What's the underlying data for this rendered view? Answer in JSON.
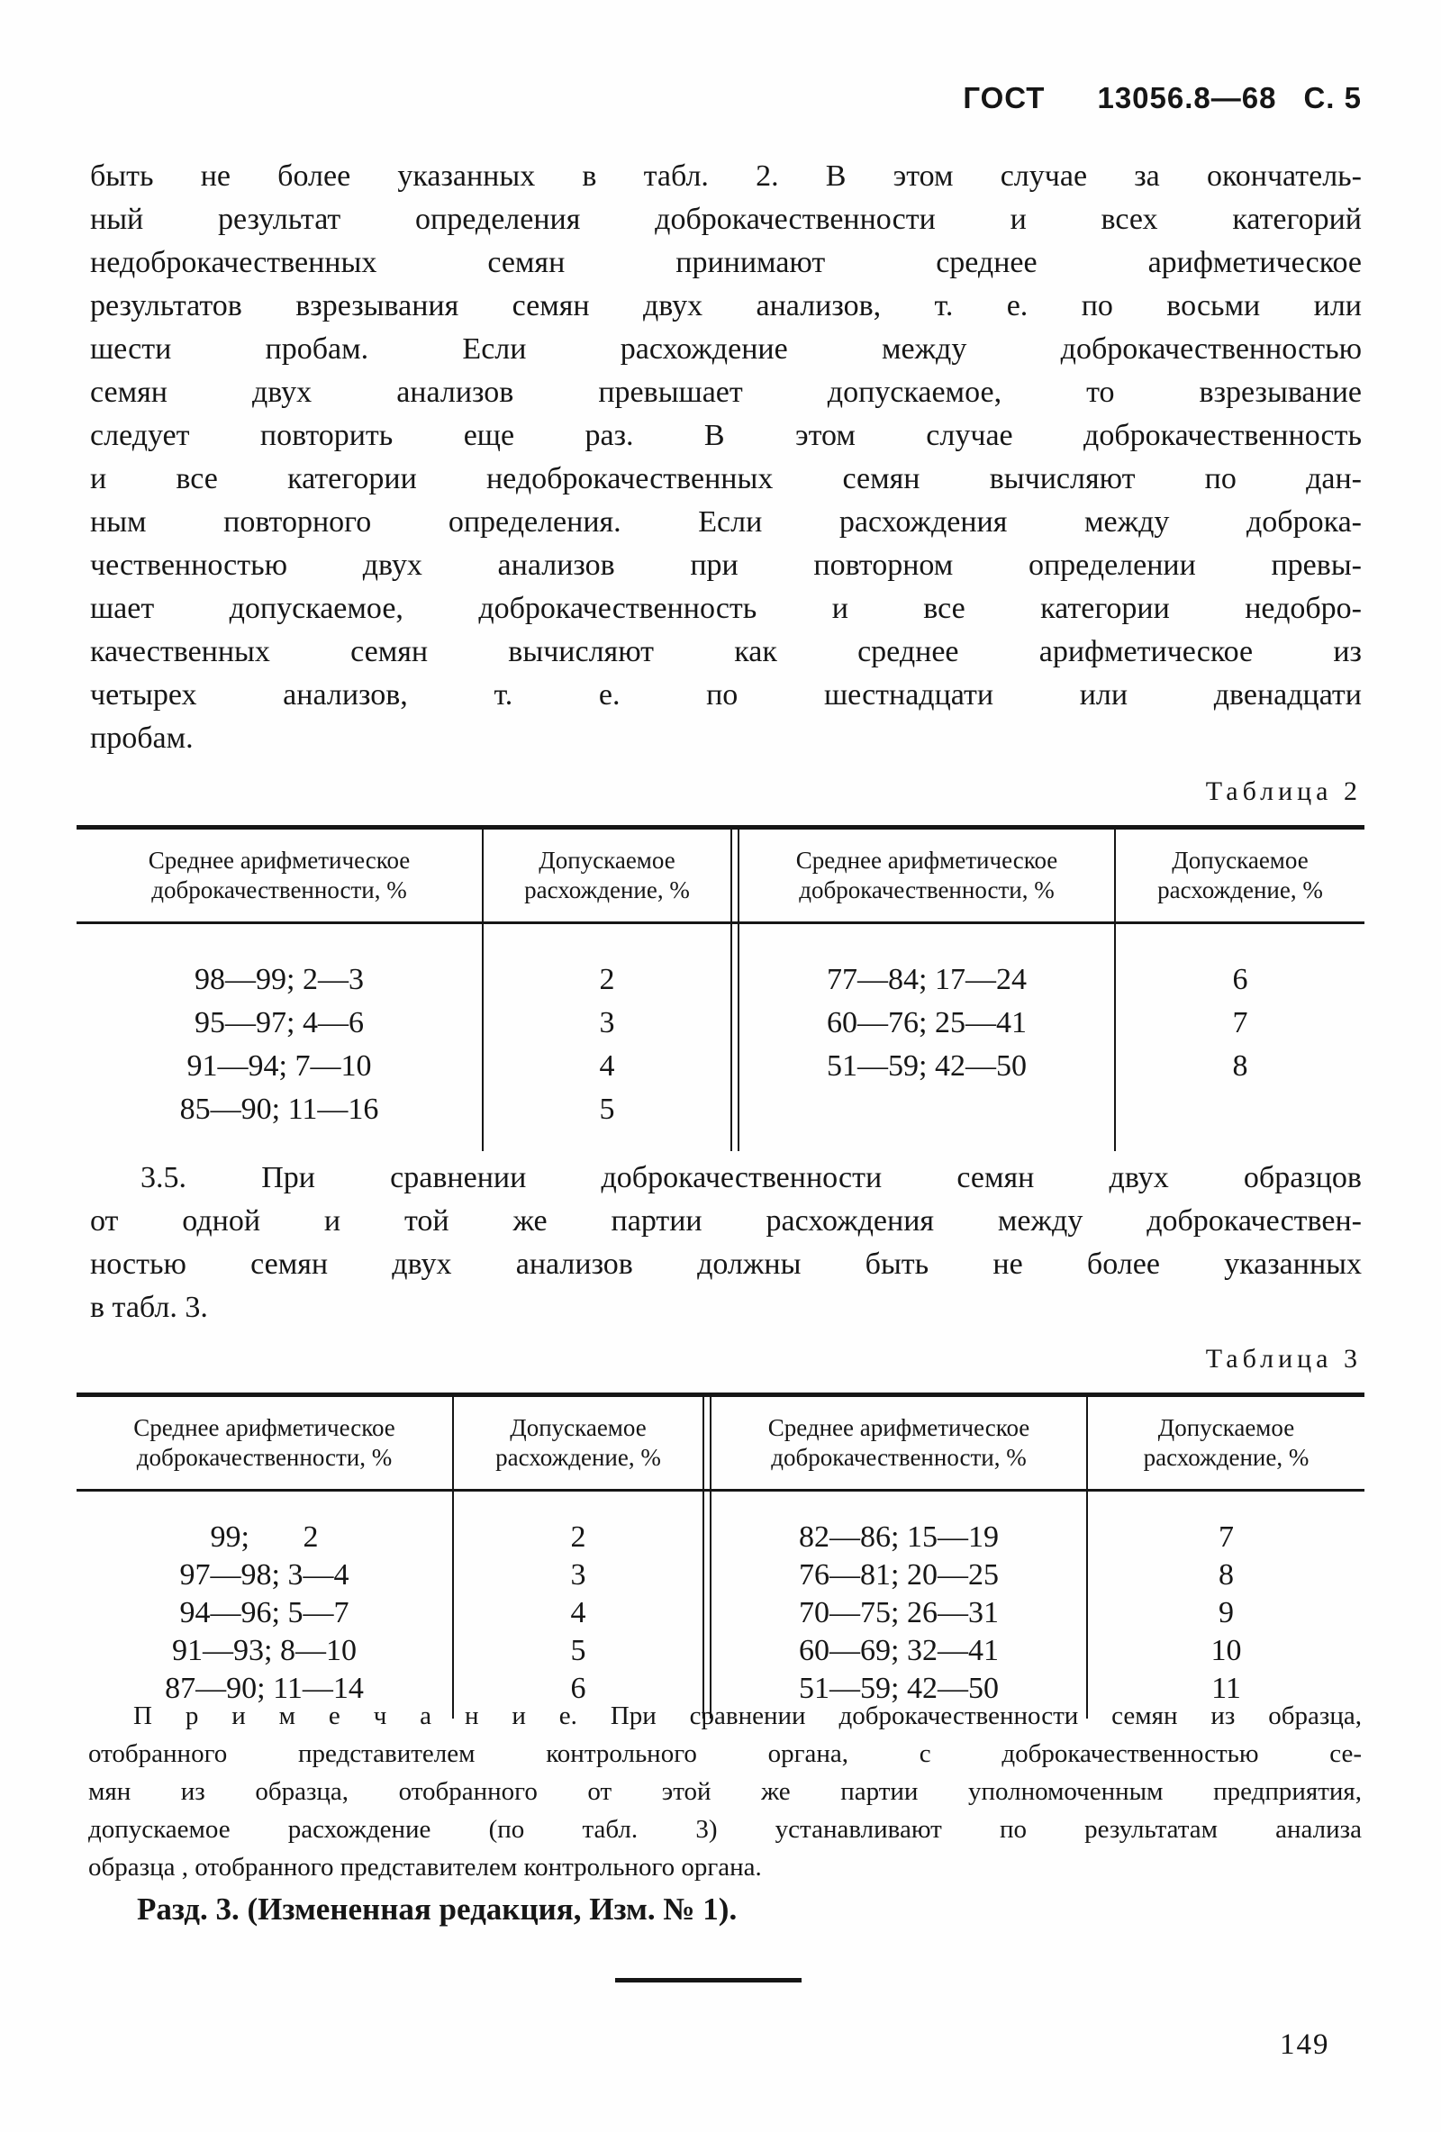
{
  "header": {
    "standard": "ГОСТ",
    "number": "13056.8—68",
    "page_label": "С. 5"
  },
  "paragraph_main": {
    "lines": [
      "быть не более указанных в табл. 2. В этом случае за окончатель-",
      "ный результат определения доброкачественности и всех категорий",
      "недоброкачественных семян принимают среднее арифметическое",
      "результатов взрезывания семян двух анализов, т. е. по восьми или",
      "шести пробам. Если расхождение между доброкачественностью",
      "семян двух анализов превышает допускаемое, то взрезывание",
      "следует повторить еще раз. В этом случае доброкачественность",
      "и все категории недоброкачественных семян вычисляют по дан-",
      "ным повторного определения. Если расхождения между доброка-",
      "чественностью двух анализов при повторном определении превы-",
      "шает допускаемое, доброкачественность и все категории недобро-",
      "качественных семян вычисляют как среднее арифметическое из",
      "четырех анализов, т. е. по шестнадцати или двенадцати",
      "пробам."
    ]
  },
  "table2": {
    "caption": "Таблица 2",
    "headers": [
      "Среднее арифметическое доброкачественности, %",
      "Допускаемое расхождение, %",
      "Среднее арифметическое доброкачественности, %",
      "Допускаемое расхождение, %"
    ],
    "rows": [
      [
        "98—99; 2—3",
        "2",
        "77—84; 17—24",
        "6"
      ],
      [
        "95—97; 4—6",
        "3",
        "60—76; 25—41",
        "7"
      ],
      [
        "91—94; 7—10",
        "4",
        "51—59; 42—50",
        "8"
      ],
      [
        "85—90; 11—16",
        "5",
        "",
        ""
      ]
    ]
  },
  "paragraph_3_5": {
    "lines": [
      "3.5. При сравнении доброкачественности семян двух образцов",
      "от одной и той же партии расхождения между доброкачествен-",
      "ностью семян двух анализов должны быть не более указанных",
      "в табл. 3."
    ]
  },
  "table3": {
    "caption": "Таблица 3",
    "headers": [
      "Среднее арифметическое доброкачественности, %",
      "Допускаемое расхождение, %",
      "Среднее арифметическое доброкачественности, %",
      "Допускаемое расхождение, %"
    ],
    "rows": [
      [
        "99;       2",
        "2",
        "82—86; 15—19",
        "7"
      ],
      [
        "97—98; 3—4",
        "3",
        "76—81; 20—25",
        "8"
      ],
      [
        "94—96; 5—7",
        "4",
        "70—75; 26—31",
        "9"
      ],
      [
        "91—93; 8—10",
        "5",
        "60—69; 32—41",
        "10"
      ],
      [
        "87—90; 11—14",
        "6",
        "51—59; 42—50",
        "11"
      ]
    ]
  },
  "note": {
    "lines": [
      "П р и м е ч а н и е. При сравнении доброкачественности семян из образца,",
      "отобранного представителем контрольного органа, с доброкачественностью се-",
      "мян из образца, отобранного от этой же партии уполномоченным предприятия,",
      "допускаемое расхождение (по табл. 3) устанавливают по результатам анализа",
      "образца , отобранного представителем контрольного органа."
    ]
  },
  "revision_line": "Разд. 3. (Измененная редакция, Изм. № 1).",
  "page_number": "149"
}
